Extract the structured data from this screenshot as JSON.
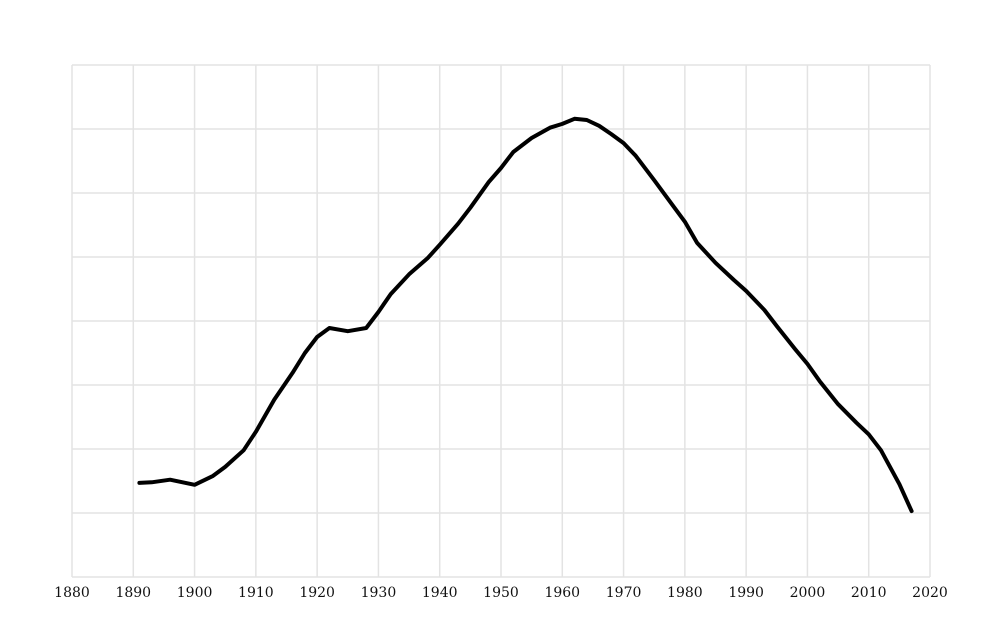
{
  "chart_data": {
    "type": "line",
    "x": [
      1891,
      1893,
      1896,
      1900,
      1903,
      1905,
      1908,
      1910,
      1913,
      1916,
      1918,
      1920,
      1922,
      1925,
      1928,
      1930,
      1932,
      1935,
      1938,
      1940,
      1943,
      1945,
      1948,
      1950,
      1952,
      1955,
      1958,
      1960,
      1962,
      1964,
      1966,
      1968,
      1970,
      1972,
      1975,
      1978,
      1980,
      1982,
      1985,
      1988,
      1990,
      1993,
      1995,
      1998,
      2000,
      2002,
      2005,
      2008,
      2010,
      2012,
      2015,
      2017
    ],
    "values": [
      1.47,
      1.48,
      1.52,
      1.44,
      1.58,
      1.72,
      1.98,
      2.27,
      2.77,
      3.19,
      3.5,
      3.75,
      3.89,
      3.84,
      3.89,
      4.14,
      4.42,
      4.73,
      4.98,
      5.19,
      5.52,
      5.77,
      6.17,
      6.39,
      6.64,
      6.86,
      7.02,
      7.08,
      7.16,
      7.14,
      7.05,
      6.92,
      6.78,
      6.58,
      6.2,
      5.81,
      5.55,
      5.22,
      4.91,
      4.64,
      4.47,
      4.17,
      3.92,
      3.56,
      3.33,
      3.06,
      2.7,
      2.41,
      2.23,
      1.98,
      1.45,
      1.03
    ],
    "color": "#000000",
    "xlim": [
      1880,
      2020
    ],
    "xticks": [
      1880,
      1890,
      1900,
      1910,
      1920,
      1930,
      1940,
      1950,
      1960,
      1970,
      1980,
      1990,
      2000,
      2010,
      2020
    ],
    "ylim": [
      0,
      8
    ],
    "yticks": [
      0,
      1,
      2,
      3,
      4,
      5,
      6,
      7,
      8
    ],
    "show_ytick_labels": false,
    "grid": true
  }
}
